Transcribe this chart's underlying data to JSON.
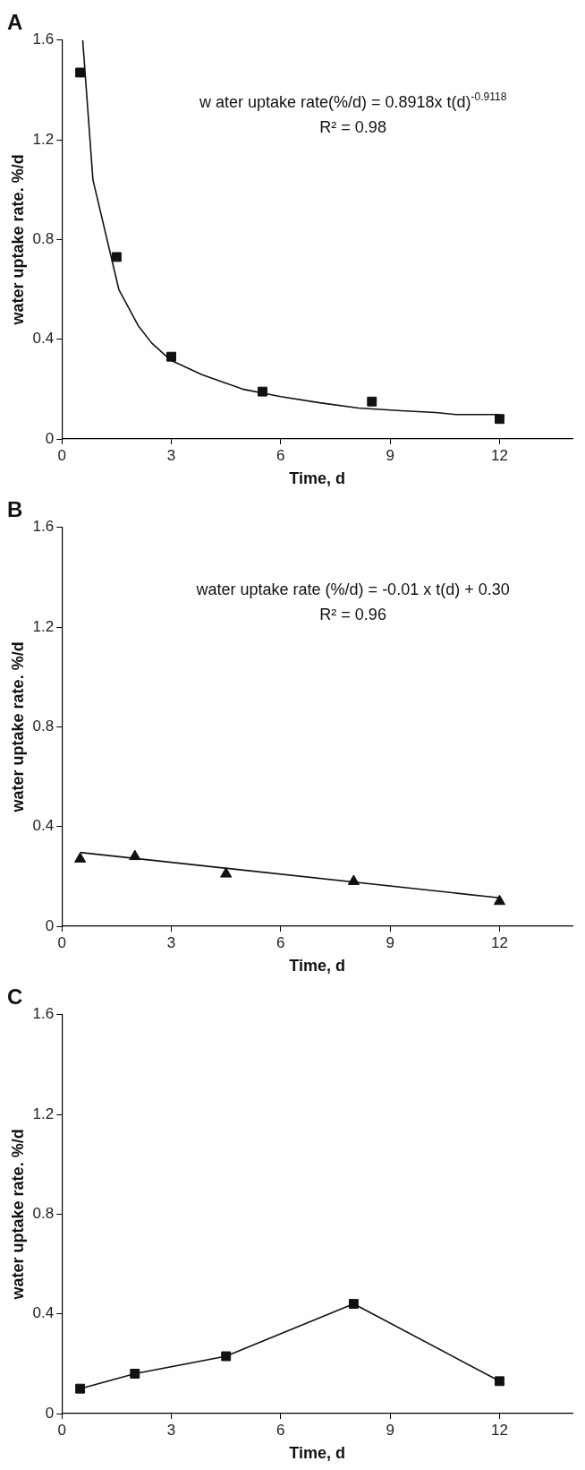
{
  "chart_data": [
    {
      "type": "scatter",
      "title": "A",
      "xlabel": "Time, d",
      "ylabel": "water uptake rate. %/d",
      "xlim": [
        0,
        14
      ],
      "xticks": [
        0,
        3,
        6,
        9,
        12
      ],
      "ylim": [
        0,
        1.6
      ],
      "yticks": [
        0,
        0.4,
        0.8,
        1.2,
        1.6
      ],
      "grid": false,
      "legend": false,
      "annotations": [
        "w ater uptake rate(%/d) = 0.8918x t(d)$^{-0.9118}$",
        "R² = 0.98"
      ],
      "series": [
        {
          "marker": "square",
          "color": "#111111",
          "x": [
            0.5,
            1.5,
            3,
            5.5,
            8.5,
            12
          ],
          "values": [
            1.47,
            0.73,
            0.33,
            0.19,
            0.15,
            0.08
          ]
        },
        {
          "type": "line",
          "marker": "none",
          "color": "#111111",
          "x": [
            0.57,
            0.85,
            1.56,
            2.09,
            2.46,
            2.99,
            3.84,
            4.53,
            4.95,
            6.0,
            7.07,
            8.13,
            9.3,
            10.25,
            10.8,
            12
          ],
          "values": [
            1.6,
            1.04,
            0.6,
            0.455,
            0.385,
            0.315,
            0.258,
            0.222,
            0.2,
            0.17,
            0.145,
            0.124,
            0.113,
            0.106,
            0.098,
            0.098
          ]
        }
      ]
    },
    {
      "type": "scatter",
      "title": "B",
      "xlabel": "Time, d",
      "ylabel": "water uptake rate. %/d",
      "xlim": [
        0,
        14
      ],
      "xticks": [
        0,
        3,
        6,
        9,
        12
      ],
      "ylim": [
        0,
        1.6
      ],
      "yticks": [
        0,
        0.4,
        0.8,
        1.2,
        1.6
      ],
      "grid": false,
      "legend": false,
      "annotations": [
        "water uptake rate (%/d) = -0.01 x t(d) + 0.30",
        "R² = 0.96"
      ],
      "series": [
        {
          "marker": "triangle",
          "color": "#111111",
          "x": [
            0.5,
            2,
            4.5,
            8,
            12
          ],
          "values": [
            0.27,
            0.28,
            0.21,
            0.18,
            0.1
          ]
        },
        {
          "type": "line",
          "marker": "none",
          "color": "#111111",
          "x": [
            0.5,
            12
          ],
          "values": [
            0.296,
            0.114
          ]
        }
      ]
    },
    {
      "type": "line",
      "title": "C",
      "xlabel": "Time, d",
      "ylabel": "water uptake rate. %/d",
      "xlim": [
        0,
        14
      ],
      "xticks": [
        0,
        3,
        6,
        9,
        12
      ],
      "ylim": [
        0,
        1.6
      ],
      "yticks": [
        0,
        0.4,
        0.8,
        1.2,
        1.6
      ],
      "grid": false,
      "legend": false,
      "series": [
        {
          "marker": "square",
          "color": "#111111",
          "x": [
            0.5,
            2,
            4.5,
            8,
            12
          ],
          "values": [
            0.1,
            0.16,
            0.23,
            0.44,
            0.13
          ]
        }
      ]
    }
  ]
}
